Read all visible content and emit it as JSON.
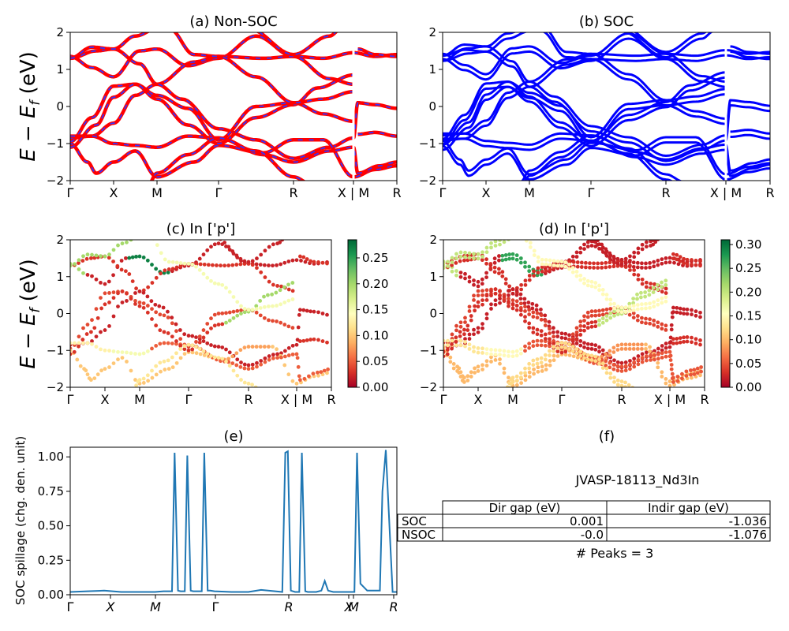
{
  "ylabel_main": "E − E_f (eV)",
  "kpath": [
    "Γ",
    "X",
    "M",
    "Γ",
    "R",
    "X | M",
    "R"
  ],
  "kpath_e": [
    "Γ",
    "X",
    "M",
    "Γ",
    "R",
    "X",
    "M",
    "R"
  ],
  "colors": {
    "nsoc_line": "#ff0000",
    "nsoc_dash": "#3333ff",
    "soc_line": "#0000ff",
    "spillage": "#1f77b4",
    "cmap": [
      "#a50026",
      "#d73027",
      "#f46d43",
      "#fdae61",
      "#fee08b",
      "#ffffbf",
      "#d9ef8b",
      "#a6d96a",
      "#66bd63",
      "#1a9850",
      "#006837"
    ]
  },
  "panels": {
    "a": {
      "title": "(a) Non-SOC"
    },
    "b": {
      "title": "(b) SOC"
    },
    "c": {
      "title": "(c)  In ['p']"
    },
    "d": {
      "title": "(d) In ['p']"
    },
    "e": {
      "title": "(e)",
      "ylabel": "SOC spillage (chg. den. unit)"
    },
    "f": {
      "title": "(f)",
      "material": "JVASP-18113_Nd3In",
      "peaks": "# Peaks = 3"
    }
  },
  "table": {
    "headers": [
      "",
      "Dir gap (eV)",
      "Indir gap (eV)"
    ],
    "rows": [
      [
        "SOC",
        "0.001",
        "-1.036"
      ],
      [
        "NSOC",
        "-0.0",
        "-1.076"
      ]
    ]
  },
  "chart_data": [
    {
      "type": "line",
      "title": "(a) Non-SOC",
      "xlabel": "",
      "ylabel": "E − E_f (eV)",
      "ylim": [
        -2,
        2
      ],
      "yticks": [
        -2,
        -1,
        0,
        1,
        2
      ],
      "xticklabels": [
        "Γ",
        "X",
        "M",
        "Γ",
        "R",
        "X | M",
        "R"
      ],
      "series": [
        {
          "points": [
            [
              0,
              1.35
            ],
            [
              0.5,
              1.1
            ],
            [
              1,
              0.8
            ],
            [
              2,
              1.5
            ],
            [
              3,
              1.05
            ],
            [
              4,
              1.35
            ],
            [
              5,
              1.45
            ]
          ]
        },
        {
          "points": [
            [
              0,
              -0.85
            ],
            [
              0.6,
              -0.8
            ],
            [
              1,
              -0.4
            ],
            [
              1.8,
              0.5
            ],
            [
              2.3,
              0.25
            ],
            [
              3,
              -0.8
            ],
            [
              3.6,
              -1.1
            ],
            [
              4,
              -1.4
            ],
            [
              5,
              -0.8
            ]
          ]
        },
        {
          "points": [
            [
              0,
              -1.0
            ],
            [
              0.6,
              -1.75
            ],
            [
              1,
              -1.5
            ],
            [
              2,
              -1.8
            ],
            [
              3,
              -1.2
            ],
            [
              4,
              -0.9
            ],
            [
              5,
              -1.8
            ]
          ]
        },
        {
          "points": [
            [
              0,
              1.3
            ],
            [
              1,
              1.55
            ],
            [
              2,
              1.3
            ],
            [
              3,
              1.35
            ],
            [
              4,
              0.7
            ],
            [
              5,
              0.6
            ]
          ]
        },
        {
          "points": [
            [
              0,
              -0.95
            ],
            [
              1,
              -0.5
            ],
            [
              2,
              0.3
            ],
            [
              3,
              -0.9
            ],
            [
              4,
              -0.5
            ],
            [
              5,
              0.1
            ]
          ]
        }
      ]
    },
    {
      "type": "line",
      "title": "(b) SOC",
      "xlabel": "",
      "ylim": [
        -2,
        2
      ],
      "yticks": [
        -2,
        -1,
        0,
        1,
        2
      ],
      "xticklabels": [
        "Γ",
        "X",
        "M",
        "Γ",
        "R",
        "X | M",
        "R"
      ],
      "series": [
        {
          "points": [
            [
              0,
              1.35
            ],
            [
              0.5,
              1.1
            ],
            [
              1,
              0.8
            ],
            [
              2,
              1.5
            ],
            [
              3,
              1.05
            ],
            [
              4,
              1.35
            ],
            [
              5,
              1.45
            ]
          ]
        },
        {
          "points": [
            [
              0,
              -0.85
            ],
            [
              0.6,
              -0.8
            ],
            [
              1,
              -0.4
            ],
            [
              1.8,
              0.5
            ],
            [
              2.3,
              0.25
            ],
            [
              3,
              -0.8
            ],
            [
              3.6,
              -1.1
            ],
            [
              4,
              -1.4
            ],
            [
              5,
              -0.8
            ]
          ]
        },
        {
          "points": [
            [
              0,
              -1.0
            ],
            [
              0.6,
              -1.75
            ],
            [
              1,
              -1.5
            ],
            [
              2,
              -1.8
            ],
            [
              3,
              -1.2
            ],
            [
              4,
              -0.9
            ],
            [
              5,
              -1.8
            ]
          ]
        },
        {
          "points": [
            [
              0,
              1.3
            ],
            [
              1,
              1.55
            ],
            [
              2,
              1.3
            ],
            [
              3,
              1.35
            ],
            [
              4,
              0.7
            ],
            [
              5,
              0.6
            ]
          ]
        },
        {
          "points": [
            [
              0,
              -0.95
            ],
            [
              1,
              -0.5
            ],
            [
              2,
              0.3
            ],
            [
              3,
              -0.9
            ],
            [
              4,
              -0.5
            ],
            [
              5,
              0.1
            ]
          ]
        }
      ]
    },
    {
      "type": "scatter",
      "title": "(c)  In ['p']",
      "ylim": [
        -2,
        2
      ],
      "yticks": [
        -2,
        -1,
        0,
        1,
        2
      ],
      "xticklabels": [
        "Γ",
        "X",
        "M",
        "Γ",
        "R",
        "X | M",
        "R"
      ],
      "colorbar": {
        "range": [
          0,
          0.28
        ],
        "ticks": [
          "0.00",
          "0.05",
          "0.10",
          "0.15",
          "0.20",
          "0.25"
        ]
      },
      "series": [
        {
          "points": [
            [
              0,
              1.3,
              0.2
            ],
            [
              0.5,
              1.0,
              0.08
            ],
            [
              1,
              0.7,
              0.02
            ],
            [
              2,
              1.5,
              0.27
            ],
            [
              3,
              1.05,
              0.03
            ],
            [
              4,
              1.35,
              0.02
            ],
            [
              5,
              1.45,
              0.03
            ]
          ]
        },
        {
          "points": [
            [
              0,
              -0.85,
              0.15
            ],
            [
              1,
              -0.4,
              0.02
            ],
            [
              2,
              0.3,
              0.03
            ],
            [
              3,
              -0.8,
              0.02
            ],
            [
              4,
              -1.4,
              0.05
            ],
            [
              5,
              -0.8,
              0.1
            ]
          ]
        },
        {
          "points": [
            [
              0,
              -0.95,
              0.2
            ],
            [
              1,
              -1.3,
              0.15
            ],
            [
              2,
              -1.5,
              0.13
            ],
            [
              3,
              -1.0,
              0.03
            ],
            [
              4,
              0.05,
              0.2
            ],
            [
              5,
              0.1,
              0.18
            ]
          ]
        },
        {
          "points": [
            [
              0,
              -1.0,
              0.05
            ],
            [
              0.6,
              -1.75,
              0.05
            ],
            [
              1,
              -1.5,
              0.1
            ],
            [
              2,
              -1.8,
              0.08
            ],
            [
              3,
              -1.2,
              0.02
            ],
            [
              4,
              -0.9,
              0.02
            ],
            [
              5,
              -1.8,
              0.03
            ]
          ]
        }
      ]
    },
    {
      "type": "scatter",
      "title": "(d) In ['p']",
      "ylim": [
        -2,
        2
      ],
      "yticks": [
        -2,
        -1,
        0,
        1,
        2
      ],
      "xticklabels": [
        "Γ",
        "X",
        "M",
        "Γ",
        "R",
        "X | M",
        "R"
      ],
      "colorbar": {
        "range": [
          0,
          0.31
        ],
        "ticks": [
          "0.00",
          "0.05",
          "0.10",
          "0.15",
          "0.20",
          "0.25",
          "0.30"
        ]
      },
      "series": [
        {
          "points": [
            [
              0,
              1.35,
              0.2
            ],
            [
              0.5,
              1.1,
              0.08
            ],
            [
              1,
              0.8,
              0.02
            ],
            [
              2,
              1.5,
              0.3
            ],
            [
              3,
              1.05,
              0.03
            ],
            [
              4,
              1.35,
              0.02
            ],
            [
              5,
              1.45,
              0.03
            ]
          ]
        },
        {
          "points": [
            [
              0,
              -0.85,
              0.15
            ],
            [
              1,
              -0.4,
              0.02
            ],
            [
              2,
              0.3,
              0.03
            ],
            [
              3,
              -0.8,
              0.02
            ],
            [
              4,
              -1.4,
              0.05
            ],
            [
              5,
              -0.8,
              0.1
            ]
          ]
        },
        {
          "points": [
            [
              0,
              -0.95,
              0.2
            ],
            [
              1,
              -1.3,
              0.15
            ],
            [
              2,
              -1.5,
              0.13
            ],
            [
              3,
              -1.0,
              0.03
            ],
            [
              4,
              0.05,
              0.2
            ],
            [
              5,
              0.1,
              0.18
            ]
          ]
        },
        {
          "points": [
            [
              0,
              -1.0,
              0.05
            ],
            [
              0.6,
              -1.75,
              0.05
            ],
            [
              1,
              -1.5,
              0.1
            ],
            [
              2,
              -1.8,
              0.08
            ],
            [
              3,
              -1.2,
              0.02
            ],
            [
              4,
              -0.9,
              0.02
            ],
            [
              5,
              -1.8,
              0.03
            ]
          ]
        }
      ]
    },
    {
      "type": "line",
      "title": "(e)",
      "ylabel": "SOC spillage (chg. den. unit)",
      "ylim": [
        0,
        1.07
      ],
      "yticks": [
        0.0,
        0.25,
        0.5,
        0.75,
        1.0
      ],
      "xticklabels": [
        "Γ",
        "X",
        "M",
        "Γ",
        "R",
        "X",
        "M",
        "R"
      ],
      "series": [
        {
          "x": [
            0,
            4,
            8,
            12,
            18,
            20,
            22,
            24,
            24.6,
            25.4,
            26,
            27,
            27.6,
            28.4,
            29,
            31,
            31.6,
            32.4,
            33,
            34,
            38,
            42,
            44,
            45,
            50,
            50.7,
            51.3,
            52,
            53,
            54,
            54.6,
            55.4,
            56,
            58,
            59.2,
            60,
            60.8,
            62,
            63,
            65,
            67,
            67.6,
            68.4,
            70,
            72,
            73,
            73.6,
            74.4,
            76,
            77
          ],
          "y": [
            0.02,
            0.025,
            0.03,
            0.02,
            0.02,
            0.02,
            0.025,
            0.025,
            1.03,
            0.03,
            0.025,
            0.025,
            1.01,
            0.03,
            0.025,
            0.025,
            1.03,
            0.03,
            0.03,
            0.025,
            0.02,
            0.02,
            0.03,
            0.035,
            0.02,
            1.03,
            1.04,
            0.03,
            0.02,
            0.02,
            1.03,
            0.025,
            0.02,
            0.02,
            0.03,
            0.1,
            0.03,
            0.02,
            0.02,
            0.02,
            0.02,
            1.03,
            0.08,
            0.03,
            0.03,
            0.03,
            0.75,
            1.05,
            0.02,
            0.02
          ]
        }
      ]
    }
  ]
}
